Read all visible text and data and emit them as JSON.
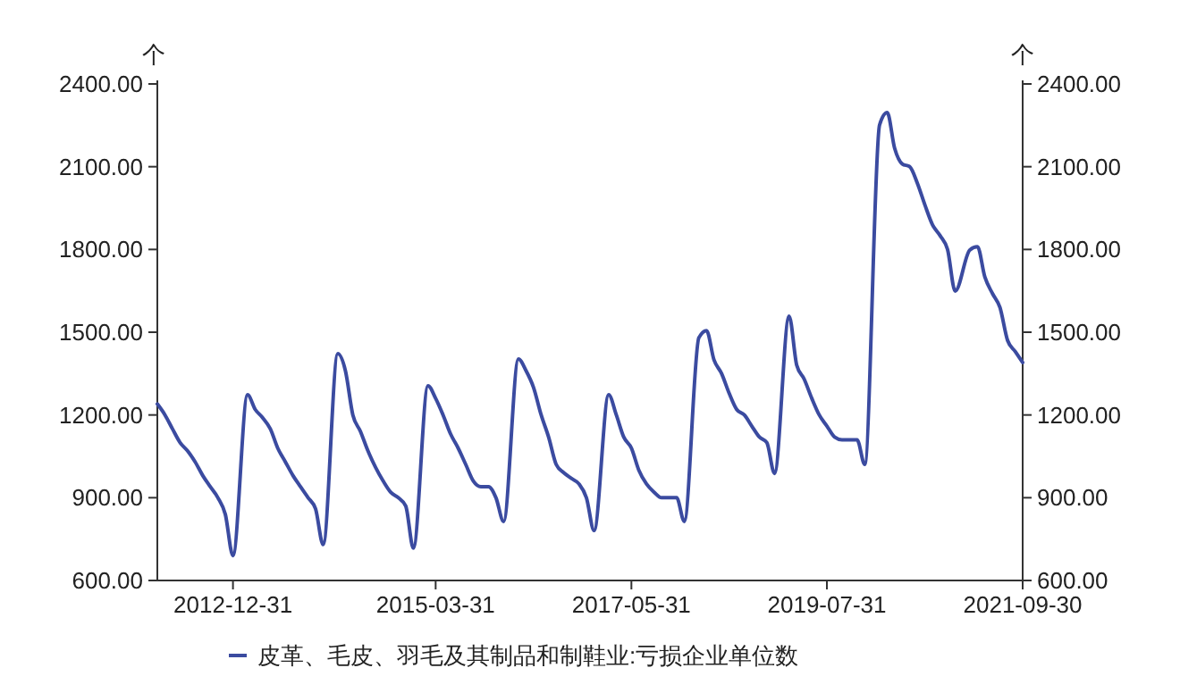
{
  "chart_data": {
    "type": "line",
    "ylabel": "个",
    "y2label": "个",
    "legend": "bottom",
    "grid": false,
    "marker": "none",
    "line_style": "solid",
    "xlim": [
      "2012-02-29",
      "2021-09-30"
    ],
    "xticks": [
      {
        "value": "2012-12-31",
        "label": "2012-12-31"
      },
      {
        "value": "2015-03-31",
        "label": "2015-03-31"
      },
      {
        "value": "2017-05-31",
        "label": "2017-05-31"
      },
      {
        "value": "2019-07-31",
        "label": "2019-07-31"
      },
      {
        "value": "2021-09-30",
        "label": "2021-09-30"
      }
    ],
    "ylim": [
      600,
      2400
    ],
    "yticks": [
      {
        "value": 600,
        "label": "600.00"
      },
      {
        "value": 900,
        "label": "900.00"
      },
      {
        "value": 1200,
        "label": "1200.00"
      },
      {
        "value": 1500,
        "label": "1500.00"
      },
      {
        "value": 1800,
        "label": "1800.00"
      },
      {
        "value": 2100,
        "label": "2100.00"
      },
      {
        "value": 2400,
        "label": "2400.00"
      }
    ],
    "y2lim": [
      600,
      2400
    ],
    "y2ticks": [
      {
        "value": 600,
        "label": "600.00"
      },
      {
        "value": 900,
        "label": "900.00"
      },
      {
        "value": 1200,
        "label": "1200.00"
      },
      {
        "value": 1500,
        "label": "1500.00"
      },
      {
        "value": 1800,
        "label": "1800.00"
      },
      {
        "value": 2100,
        "label": "2100.00"
      },
      {
        "value": 2400,
        "label": "2400.00"
      }
    ],
    "x": [
      "2012-02-29",
      "2012-03-31",
      "2012-04-30",
      "2012-05-31",
      "2012-06-30",
      "2012-07-31",
      "2012-08-31",
      "2012-09-30",
      "2012-10-31",
      "2012-11-30",
      "2012-12-31",
      "2013-02-28",
      "2013-03-31",
      "2013-04-30",
      "2013-05-31",
      "2013-06-30",
      "2013-07-31",
      "2013-08-31",
      "2013-09-30",
      "2013-10-31",
      "2013-11-30",
      "2013-12-31",
      "2014-02-28",
      "2014-03-31",
      "2014-04-30",
      "2014-05-31",
      "2014-06-30",
      "2014-07-31",
      "2014-08-31",
      "2014-09-30",
      "2014-10-31",
      "2014-11-30",
      "2014-12-31",
      "2015-02-28",
      "2015-03-31",
      "2015-04-30",
      "2015-05-31",
      "2015-06-30",
      "2015-07-31",
      "2015-08-31",
      "2015-09-30",
      "2015-10-31",
      "2015-11-30",
      "2015-12-31",
      "2016-02-29",
      "2016-03-31",
      "2016-04-30",
      "2016-05-31",
      "2016-06-30",
      "2016-07-31",
      "2016-08-31",
      "2016-09-30",
      "2016-10-31",
      "2016-11-30",
      "2016-12-31",
      "2017-02-28",
      "2017-03-31",
      "2017-04-30",
      "2017-05-31",
      "2017-06-30",
      "2017-07-31",
      "2017-08-31",
      "2017-09-30",
      "2017-10-31",
      "2017-11-30",
      "2017-12-31",
      "2018-02-28",
      "2018-03-31",
      "2018-04-30",
      "2018-05-31",
      "2018-06-30",
      "2018-07-31",
      "2018-08-31",
      "2018-09-30",
      "2018-10-31",
      "2018-11-30",
      "2018-12-31",
      "2019-02-28",
      "2019-03-31",
      "2019-04-30",
      "2019-05-31",
      "2019-06-30",
      "2019-07-31",
      "2019-08-31",
      "2019-09-30",
      "2019-10-31",
      "2019-11-30",
      "2019-12-31",
      "2020-02-29",
      "2020-03-31",
      "2020-04-30",
      "2020-05-31",
      "2020-06-30",
      "2020-07-31",
      "2020-08-31",
      "2020-09-30",
      "2020-10-31",
      "2020-11-30",
      "2020-12-31",
      "2021-02-28",
      "2021-03-31",
      "2021-04-30",
      "2021-05-31",
      "2021-06-30",
      "2021-07-31",
      "2021-08-31",
      "2021-09-30"
    ],
    "series": [
      {
        "name": "皮革、毛皮、羽毛及其制品和制鞋业:亏损企业单位数",
        "color": "#3b4ba0",
        "values": [
          1240,
          1200,
          1150,
          1100,
          1070,
          1030,
          980,
          940,
          900,
          840,
          690,
          1273,
          1220,
          1190,
          1150,
          1080,
          1030,
          980,
          940,
          900,
          860,
          730,
          1422,
          1360,
          1200,
          1140,
          1070,
          1010,
          960,
          920,
          900,
          870,
          717,
          1306,
          1260,
          1200,
          1130,
          1080,
          1020,
          960,
          940,
          940,
          900,
          814,
          1403,
          1360,
          1300,
          1200,
          1120,
          1020,
          990,
          970,
          950,
          900,
          781,
          1273,
          1200,
          1120,
          1080,
          1000,
          950,
          920,
          900,
          900,
          900,
          814,
          1480,
          1506,
          1400,
          1350,
          1280,
          1220,
          1200,
          1160,
          1120,
          1100,
          988,
          1558,
          1380,
          1330,
          1260,
          1200,
          1160,
          1120,
          1110,
          1110,
          1110,
          1021,
          2251,
          2296,
          2167,
          2110,
          2100,
          2040,
          1960,
          1890,
          1850,
          1800,
          1649,
          1798,
          1810,
          1700,
          1640,
          1590,
          1470,
          1430,
          1390
        ]
      }
    ]
  }
}
